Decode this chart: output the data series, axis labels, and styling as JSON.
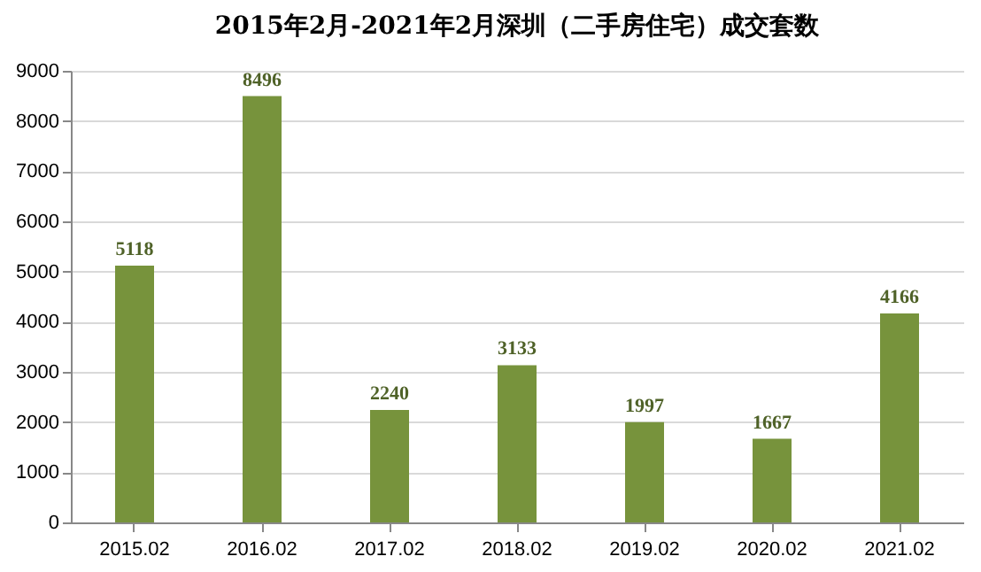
{
  "chart_data": {
    "type": "bar",
    "title": "2015年2月-2021年2月深圳（二手房住宅）成交套数",
    "categories": [
      "2015.02",
      "2016.02",
      "2017.02",
      "2018.02",
      "2019.02",
      "2020.02",
      "2021.02"
    ],
    "values": [
      5118,
      8496,
      2240,
      3133,
      1997,
      1667,
      4166
    ],
    "color": "#77933c",
    "ylim": [
      0,
      9000
    ],
    "yticks": [
      0,
      1000,
      2000,
      3000,
      4000,
      5000,
      6000,
      7000,
      8000,
      9000
    ],
    "grid": "y",
    "data_labels": true
  }
}
